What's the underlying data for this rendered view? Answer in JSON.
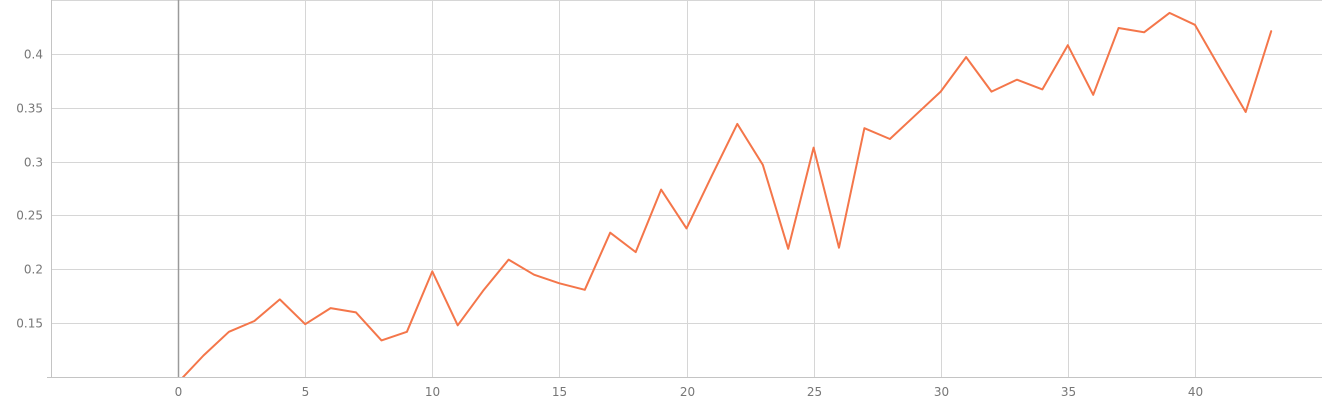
{
  "chart_data": {
    "type": "line",
    "title": "",
    "xlabel": "",
    "ylabel": "",
    "xlim": [
      -5,
      45
    ],
    "ylim": [
      0.1,
      0.45
    ],
    "x_ticks": [
      0,
      5,
      10,
      15,
      20,
      25,
      30,
      35,
      40
    ],
    "x_tick_labels": [
      "0",
      "5",
      "10",
      "15",
      "20",
      "25",
      "30",
      "35",
      "40"
    ],
    "y_ticks": [
      0.15,
      0.2,
      0.25,
      0.3,
      0.35,
      0.4
    ],
    "y_tick_labels": [
      "0.15",
      "0.2",
      "0.25",
      "0.3",
      "0.35",
      "0.4"
    ],
    "grid": true,
    "series": [
      {
        "color": "#f4764a",
        "x": [
          0,
          1,
          2,
          3,
          4,
          5,
          6,
          7,
          8,
          9,
          10,
          11,
          12,
          13,
          14,
          15,
          16,
          17,
          18,
          19,
          20,
          21,
          22,
          23,
          24,
          25,
          26,
          27,
          28,
          29,
          30,
          31,
          32,
          33,
          34,
          35,
          36,
          37,
          38,
          39,
          40,
          41,
          42,
          43
        ],
        "y": [
          0.095,
          0.12,
          0.142,
          0.152,
          0.172,
          0.149,
          0.164,
          0.16,
          0.134,
          0.142,
          0.198,
          0.148,
          0.18,
          0.209,
          0.195,
          0.187,
          0.181,
          0.234,
          0.216,
          0.274,
          0.238,
          0.287,
          0.335,
          0.297,
          0.219,
          0.313,
          0.22,
          0.331,
          0.321,
          0.343,
          0.365,
          0.397,
          0.365,
          0.376,
          0.367,
          0.408,
          0.362,
          0.424,
          0.42,
          0.438,
          0.427,
          0.386,
          0.346,
          0.421
        ]
      }
    ]
  }
}
